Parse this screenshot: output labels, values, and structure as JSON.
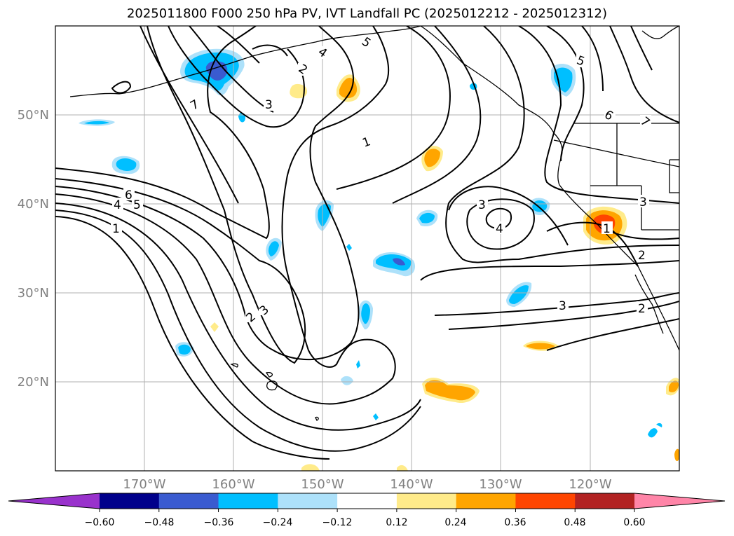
{
  "title": "2025011800 F000 250 hPa PV, IVT Landfall PC (2025012212 - 2025012312)",
  "map": {
    "lat_labels": [
      "50°N",
      "40°N",
      "30°N",
      "20°N"
    ],
    "lon_labels": [
      "170°W",
      "160°W",
      "150°W",
      "140°W",
      "130°W",
      "120°W"
    ],
    "lon_range_deg": [
      -180,
      -110
    ],
    "lat_range_deg": [
      10,
      60
    ],
    "gridlines": true,
    "contour_labels": [
      "5",
      "4",
      "2",
      "7",
      "3",
      "1",
      "6",
      "5",
      "4",
      "1",
      "5",
      "3",
      "4",
      "6",
      "3",
      "1",
      "2",
      "3",
      "2",
      "2",
      "3",
      "7"
    ]
  },
  "colorbar": {
    "ticks": [
      "−0.60",
      "−0.48",
      "−0.36",
      "−0.24",
      "−0.12",
      "0.12",
      "0.24",
      "0.36",
      "0.48",
      "0.60"
    ],
    "colors": [
      "#9932CC",
      "#00008B",
      "#3A5BD0",
      "#00BFFF",
      "#ADE1FA",
      "#FFFFFF",
      "#FFEB8A",
      "#FFA500",
      "#FF4500",
      "#B22222",
      "#FF85A8"
    ],
    "extend": "both"
  },
  "colors": {
    "blue_light": "#ADE1FA",
    "blue": "#00BFFF",
    "blue_mid": "#3A5BD0",
    "yellow": "#FFEB8A",
    "orange": "#FFA500",
    "red_orange": "#FF4500"
  }
}
